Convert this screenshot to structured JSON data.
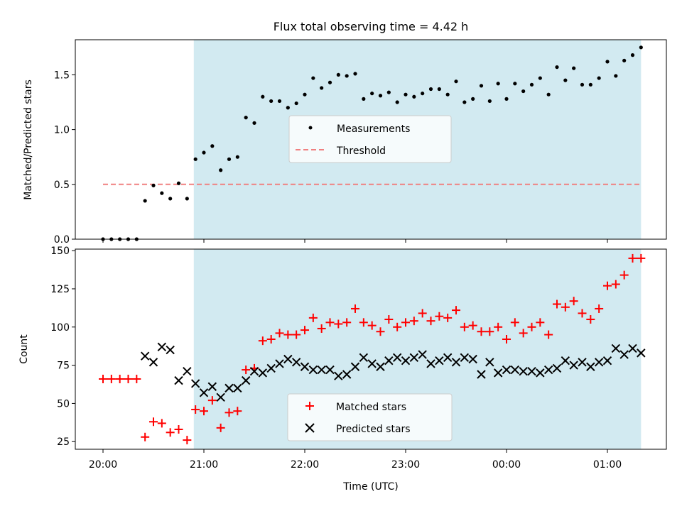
{
  "title": "Flux total observing time = 4.42 h",
  "colors": {
    "shade": "#add8e6",
    "measurement": "#000000",
    "threshold": "#f08080",
    "matched": "#ff0000",
    "predicted": "#000000"
  },
  "chart_data": [
    {
      "type": "scatter",
      "ylabel": "Matched/Predicted stars",
      "xlabel": "",
      "ylim": [
        0,
        1.82
      ],
      "yticks": [
        0.0,
        0.5,
        1.0,
        1.5
      ],
      "ytick_labels": [
        "0.0",
        "0.5",
        "1.0",
        "1.5"
      ],
      "grid": false,
      "legend_position": "center",
      "shaded_x_range": [
        "20:54",
        "01:20"
      ],
      "threshold": {
        "name": "Threshold",
        "y": 0.5,
        "x_range": [
          "20:00",
          "01:20"
        ]
      },
      "series": [
        {
          "name": "Measurements",
          "x": [
            "20:00",
            "20:05",
            "20:10",
            "20:15",
            "20:20",
            "20:25",
            "20:30",
            "20:35",
            "20:40",
            "20:45",
            "20:50",
            "20:55",
            "21:00",
            "21:05",
            "21:10",
            "21:15",
            "21:20",
            "21:25",
            "21:30",
            "21:35",
            "21:40",
            "21:45",
            "21:50",
            "21:55",
            "22:00",
            "22:05",
            "22:10",
            "22:15",
            "22:20",
            "22:25",
            "22:30",
            "22:35",
            "22:40",
            "22:45",
            "22:50",
            "22:55",
            "23:00",
            "23:05",
            "23:10",
            "23:15",
            "23:20",
            "23:25",
            "23:30",
            "23:35",
            "23:40",
            "23:45",
            "23:50",
            "23:55",
            "00:00",
            "00:05",
            "00:10",
            "00:15",
            "00:20",
            "00:25",
            "00:30",
            "00:35",
            "00:40",
            "00:45",
            "00:50",
            "00:55",
            "01:00",
            "01:05",
            "01:10",
            "01:15",
            "01:20"
          ],
          "y": [
            0.0,
            0.0,
            0.0,
            0.0,
            0.0,
            0.35,
            0.49,
            0.42,
            0.37,
            0.51,
            0.37,
            0.73,
            0.79,
            0.85,
            0.63,
            0.73,
            0.75,
            1.11,
            1.06,
            1.3,
            1.26,
            1.26,
            1.2,
            1.24,
            1.32,
            1.47,
            1.38,
            1.43,
            1.5,
            1.49,
            1.51,
            1.28,
            1.33,
            1.31,
            1.34,
            1.25,
            1.32,
            1.3,
            1.33,
            1.37,
            1.37,
            1.32,
            1.44,
            1.25,
            1.28,
            1.4,
            1.26,
            1.42,
            1.28,
            1.42,
            1.35,
            1.41,
            1.47,
            1.32,
            1.57,
            1.45,
            1.56,
            1.41,
            1.41,
            1.47,
            1.62,
            1.49,
            1.63,
            1.68,
            1.75
          ]
        }
      ]
    },
    {
      "type": "scatter",
      "ylabel": "Count",
      "xlabel": "Time (UTC)",
      "ylim": [
        20,
        151
      ],
      "yticks": [
        25,
        50,
        75,
        100,
        125,
        150
      ],
      "ytick_labels": [
        "25",
        "50",
        "75",
        "100",
        "125",
        "150"
      ],
      "x_ticks": [
        "20:00",
        "21:00",
        "22:00",
        "23:00",
        "00:00",
        "01:00"
      ],
      "grid": false,
      "legend_position": "lower center",
      "shaded_x_range": [
        "20:54",
        "01:20"
      ],
      "series": [
        {
          "name": "Matched stars",
          "x": [
            "20:00",
            "20:05",
            "20:10",
            "20:15",
            "20:20",
            "20:25",
            "20:30",
            "20:35",
            "20:40",
            "20:45",
            "20:50",
            "20:55",
            "21:00",
            "21:05",
            "21:10",
            "21:15",
            "21:20",
            "21:25",
            "21:30",
            "21:35",
            "21:40",
            "21:45",
            "21:50",
            "21:55",
            "22:00",
            "22:05",
            "22:10",
            "22:15",
            "22:20",
            "22:25",
            "22:30",
            "22:35",
            "22:40",
            "22:45",
            "22:50",
            "22:55",
            "23:00",
            "23:05",
            "23:10",
            "23:15",
            "23:20",
            "23:25",
            "23:30",
            "23:35",
            "23:40",
            "23:45",
            "23:50",
            "23:55",
            "00:00",
            "00:05",
            "00:10",
            "00:15",
            "00:20",
            "00:25",
            "00:30",
            "00:35",
            "00:40",
            "00:45",
            "00:50",
            "00:55",
            "01:00",
            "01:05",
            "01:10",
            "01:15",
            "01:20"
          ],
          "y": [
            66,
            66,
            66,
            66,
            66,
            28,
            38,
            37,
            31,
            33,
            26,
            46,
            45,
            52,
            34,
            44,
            45,
            72,
            73,
            91,
            92,
            96,
            95,
            95,
            98,
            106,
            99,
            103,
            102,
            103,
            112,
            103,
            101,
            97,
            105,
            100,
            103,
            104,
            109,
            104,
            107,
            106,
            111,
            100,
            101,
            97,
            97,
            100,
            92,
            103,
            96,
            100,
            103,
            95,
            115,
            113,
            117,
            109,
            105,
            112,
            127,
            128,
            134,
            145,
            145
          ]
        },
        {
          "name": "Predicted stars",
          "x": [
            "20:25",
            "20:30",
            "20:35",
            "20:40",
            "20:45",
            "20:50",
            "20:55",
            "21:00",
            "21:05",
            "21:10",
            "21:15",
            "21:20",
            "21:25",
            "21:30",
            "21:35",
            "21:40",
            "21:45",
            "21:50",
            "21:55",
            "22:00",
            "22:05",
            "22:10",
            "22:15",
            "22:20",
            "22:25",
            "22:30",
            "22:35",
            "22:40",
            "22:45",
            "22:50",
            "22:55",
            "23:00",
            "23:05",
            "23:10",
            "23:15",
            "23:20",
            "23:25",
            "23:30",
            "23:35",
            "23:40",
            "23:45",
            "23:50",
            "23:55",
            "00:00",
            "00:05",
            "00:10",
            "00:15",
            "00:20",
            "00:25",
            "00:30",
            "00:35",
            "00:40",
            "00:45",
            "00:50",
            "00:55",
            "01:00",
            "01:05",
            "01:10",
            "01:15",
            "01:20"
          ],
          "y": [
            81,
            77,
            87,
            85,
            65,
            71,
            63,
            57,
            61,
            54,
            60,
            60,
            65,
            71,
            70,
            73,
            76,
            79,
            77,
            74,
            72,
            72,
            72,
            68,
            69,
            74,
            80,
            76,
            74,
            78,
            80,
            78,
            80,
            82,
            76,
            78,
            80,
            77,
            80,
            79,
            69,
            77,
            70,
            72,
            72,
            71,
            71,
            70,
            72,
            73,
            78,
            75,
            77,
            74,
            77,
            78,
            86,
            82,
            86,
            83
          ]
        }
      ]
    }
  ]
}
